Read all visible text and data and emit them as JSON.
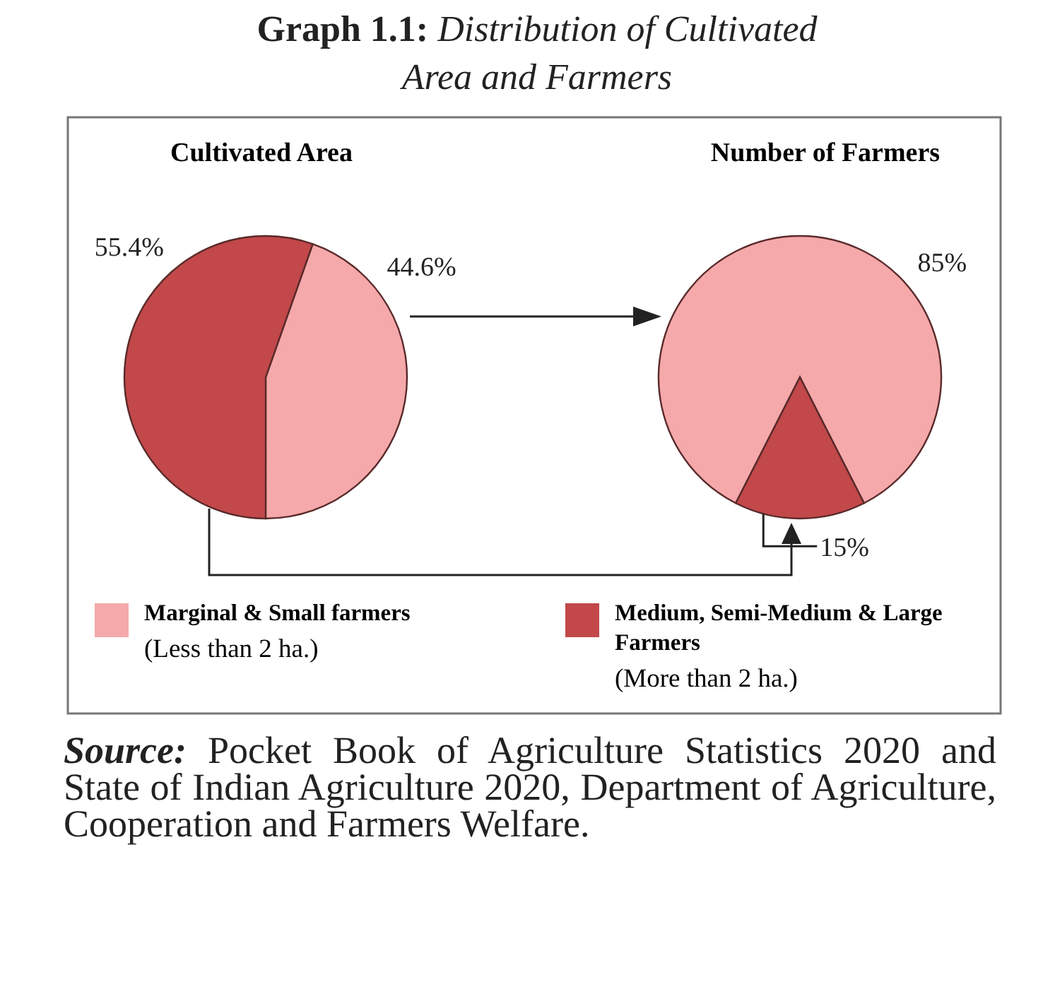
{
  "chart_data": [
    {
      "type": "pie",
      "title": "Cultivated Area",
      "categories": [
        "Marginal & Small farmers (Less than 2 ha.)",
        "Medium, Semi-Medium & Large Farmers (More than 2 ha.)"
      ],
      "values": [
        44.6,
        55.4
      ],
      "colors": [
        "#f5a9ab",
        "#c2484a"
      ],
      "value_labels": [
        "44.6%",
        "55.4%"
      ],
      "legend": "bottom",
      "annotations": [
        "Graph 1.1: Distribution of Cultivated Area and Farmers",
        "Source: Pocket Book of Agriculture Statistics 2020 and State of Indian Agriculture 2020, Department of Agriculture, Cooperation and Farmers Welfare."
      ]
    },
    {
      "type": "pie",
      "title": "Number of Farmers",
      "categories": [
        null,
        null
      ],
      "values": [
        85,
        15
      ],
      "colors": [
        "#f5a9ab",
        "#c2484a"
      ],
      "value_labels": [
        "85%",
        "15%"
      ]
    }
  ]
}
